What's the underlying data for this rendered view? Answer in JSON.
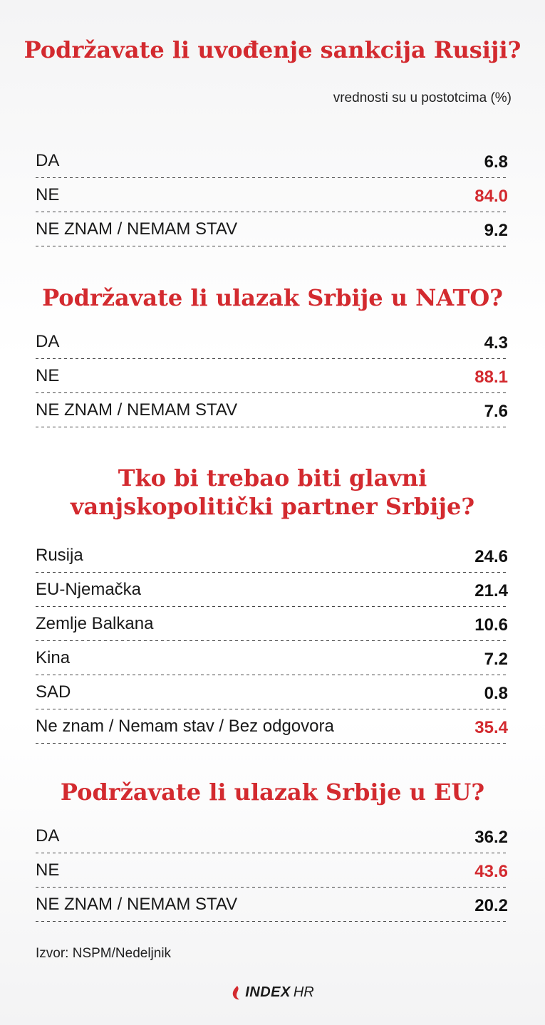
{
  "chart_data": [
    {
      "type": "table",
      "title": "Podržavate li uvođenje sankcija Rusiji?",
      "rows": [
        {
          "label": "DA",
          "value": "6.8",
          "highlight": false
        },
        {
          "label": "NE",
          "value": "84.0",
          "highlight": true
        },
        {
          "label": "NE ZNAM / NEMAM STAV",
          "value": "9.2",
          "highlight": false
        }
      ]
    },
    {
      "type": "table",
      "title": "Podržavate li ulazak Srbije u NATO?",
      "rows": [
        {
          "label": "DA",
          "value": "4.3",
          "highlight": false
        },
        {
          "label": "NE",
          "value": "88.1",
          "highlight": true
        },
        {
          "label": "NE ZNAM / NEMAM STAV",
          "value": "7.6",
          "highlight": false
        }
      ]
    },
    {
      "type": "table",
      "title": "Tko bi trebao biti glavni vanjskopolitički partner Srbije?",
      "rows": [
        {
          "label": "Rusija",
          "value": "24.6",
          "highlight": false
        },
        {
          "label": "EU-Njemačka",
          "value": "21.4",
          "highlight": false
        },
        {
          "label": "Zemlje Balkana",
          "value": "10.6",
          "highlight": false
        },
        {
          "label": "Kina",
          "value": "7.2",
          "highlight": false
        },
        {
          "label": "SAD",
          "value": "0.8",
          "highlight": false
        },
        {
          "label": "Ne znam / Nemam stav / Bez odgovora",
          "value": "35.4",
          "highlight": true
        }
      ]
    },
    {
      "type": "table",
      "title": "Podržavate li ulazak Srbije u EU?",
      "rows": [
        {
          "label": "DA",
          "value": "36.2",
          "highlight": false
        },
        {
          "label": "NE",
          "value": "43.6",
          "highlight": true
        },
        {
          "label": "NE ZNAM / NEMAM STAV",
          "value": "20.2",
          "highlight": false
        }
      ]
    }
  ],
  "note": "vrednosti su u postotcima (%)",
  "source": "Izvor: NSPM/Nedeljnik",
  "logo": {
    "bold": "INDEX",
    "light": "HR"
  },
  "colors": {
    "accent": "#d32a2f",
    "text": "#111111"
  }
}
